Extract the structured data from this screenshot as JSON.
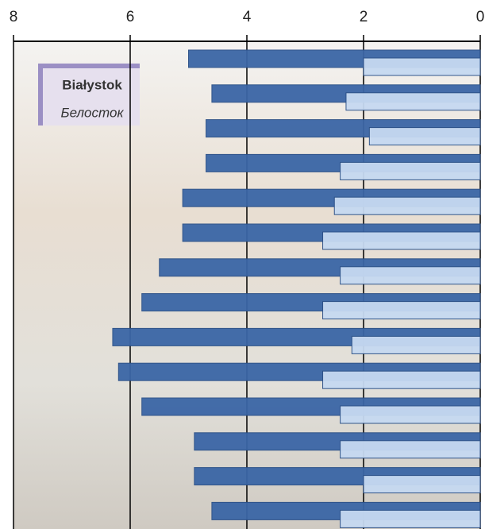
{
  "chart_data": {
    "type": "bar",
    "orientation": "horizontal",
    "annotations": [
      "Białystok",
      "Белосток"
    ],
    "categories": [
      null,
      null,
      null,
      null,
      null,
      null,
      null,
      null,
      null,
      null,
      null,
      null,
      null,
      null
    ],
    "series": [
      {
        "color": "#3b66a6",
        "values": [
          5.0,
          4.6,
          4.7,
          4.7,
          5.1,
          5.1,
          5.5,
          5.8,
          6.3,
          6.2,
          5.8,
          4.9,
          4.9,
          4.6
        ]
      },
      {
        "color": "#c6d9f1",
        "values": [
          2.0,
          2.3,
          1.9,
          2.4,
          2.5,
          2.7,
          2.4,
          2.7,
          2.2,
          2.7,
          2.4,
          2.4,
          2.0,
          2.4
        ]
      }
    ],
    "xlim": [
      8,
      0
    ],
    "xticks": [
      8,
      6,
      4,
      2,
      0
    ],
    "grid": true
  }
}
